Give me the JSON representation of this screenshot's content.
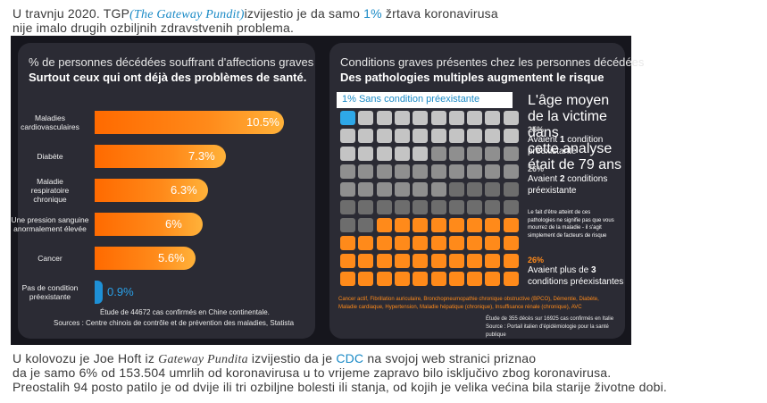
{
  "intro": {
    "prefix": "U travnju 2020. TGP",
    "source_paren": "(The Gateway Pundit)",
    "mid": "izvijestio je da samo ",
    "pct": "1%",
    "suffix": " žrtava koronavirusa",
    "line2": "nije imalo drugih ozbiljnih zdravstvenih problema."
  },
  "left_panel": {
    "title": "% de personnes décédées souffrant d'affections graves",
    "subtitle": "Surtout ceux qui ont déjà des problèmes de santé.",
    "bars": [
      {
        "label": "Maladies\ncardiovasculaires",
        "value": 10.5,
        "display": "10.5%"
      },
      {
        "label": "Diabète",
        "value": 7.3,
        "display": "7.3%"
      },
      {
        "label": "Maladie\nrespiratoire\nchronique",
        "value": 6.3,
        "display": "6.3%"
      },
      {
        "label": "Une pression sanguine\nanormalement élevée",
        "value": 6,
        "display": "6%"
      },
      {
        "label": "Cancer",
        "value": 5.6,
        "display": "5.6%"
      },
      {
        "label": "Pas de condition\npréexistante",
        "value": 0.9,
        "display": "0.9%"
      }
    ],
    "note1": "Étude de 44672 cas confirmés en Chine continentale.",
    "note2": "Sources : Centre chinois de contrôle et de prévention des maladies, Statista"
  },
  "right_panel": {
    "title": "Conditions graves présentes chez les personnes décédées",
    "subtitle": "Des pathologies multiples augmentent le risque",
    "legend": "1% Sans condition préexistante",
    "age_note": "L'âge moyen de la victime dans\ncette analyse était de 79 ans",
    "groups": [
      {
        "pct": "25%",
        "text_a": "Avaient ",
        "num": "1",
        "text_b": " condition\npréexistante"
      },
      {
        "pct": "26%",
        "text_a": "Avaient ",
        "num": "2",
        "text_b": " conditions\npréexistante"
      },
      {
        "pct": "26%",
        "text_a": "Avaient plus de ",
        "num": "3",
        "text_b": "\nconditions préexistantes"
      }
    ],
    "risk_note": "Le fait d'être atteint de ces\npathologies ne signifie pas que vous\nmourrez de la maladie - il s'agit\nsimplement de facteurs de risque",
    "conditions_list": "Cancer actif, Fibrillation auriculaire, Bronchopneumopathie chronique obstructive (BPCO), Démentie, Diabète,\nMaladie cardiaque, Hypertension, Maladie hépatique (chronique), Insuffisance rénale (chronique), AVC",
    "study_note": "Étude de 355 décès sur 16925 cas confirmés en Italie\nSource : Portail italien d'épidémiologie pour la santé publique",
    "colors": {
      "none": "#2ea8e8",
      "one": "#c4c4c4",
      "two": "#8f8f8f",
      "three": "#6d6d6d",
      "more": "#ff8a1a"
    }
  },
  "outro": {
    "l1_a": "U kolovozu je Joe Hoft iz ",
    "l1_src": "Gateway Pundita",
    "l1_b": " izvijestio da je ",
    "l1_cdc": "CDC",
    "l1_c": " na svojoj web stranici priznao",
    "l2": "da je samo 6% od 153.504 umrlih od koronavirusa u to vrijeme zapravo bilo isključivo zbog koronavirusa.",
    "l3": "Preostalih 94 posto patilo je od dvije ili tri ozbiljne bolesti ili stanja, od kojih je velika većina bila starije životne dobi."
  }
}
